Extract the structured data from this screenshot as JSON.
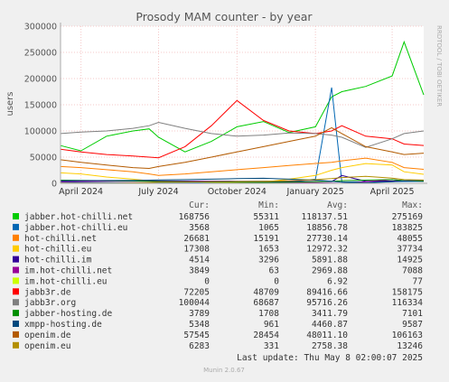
{
  "chart_data": {
    "type": "line",
    "title": "Prosody MAM counter - by year",
    "ylabel": "users",
    "watermark": "RRDTOOL / TOBI OETIKER",
    "ylim": [
      0,
      300000
    ],
    "y_ticks": [
      0,
      50000,
      100000,
      150000,
      200000,
      250000,
      300000
    ],
    "y_tick_labels": [
      "0",
      "50000",
      "100000",
      "150000",
      "200000",
      "250000",
      "300000"
    ],
    "x_ticks": [
      {
        "label": "April 2024",
        "date": "2024-04-01"
      },
      {
        "label": "July 2024",
        "date": "2024-07-01"
      },
      {
        "label": "October 2024",
        "date": "2024-10-01"
      },
      {
        "label": "January 2025",
        "date": "2025-01-01"
      },
      {
        "label": "April 2025",
        "date": "2025-04-01"
      }
    ],
    "x_range": [
      "2024-03-08",
      "2025-05-08"
    ],
    "x": [
      "2024-03-08",
      "2024-04-01",
      "2024-05-01",
      "2024-06-01",
      "2024-06-20",
      "2024-07-01",
      "2024-08-01",
      "2024-09-01",
      "2024-10-01",
      "2024-11-01",
      "2024-12-01",
      "2025-01-01",
      "2025-01-20",
      "2025-02-01",
      "2025-03-01",
      "2025-04-01",
      "2025-04-15",
      "2025-05-08"
    ],
    "series": [
      {
        "name": "jabber.hot-chilli.net",
        "color": "#00cc00",
        "values": [
          72000,
          62000,
          90000,
          100000,
          104000,
          88000,
          60000,
          80000,
          108000,
          118000,
          97000,
          108000,
          165000,
          175000,
          185000,
          205000,
          270000,
          168756
        ]
      },
      {
        "name": "jabber.hot-chilli.eu",
        "color": "#0066b3",
        "values": [
          2000,
          1500,
          1200,
          1100,
          1100,
          1065,
          1300,
          1500,
          1800,
          2000,
          3000,
          8000,
          183000,
          2500,
          3000,
          3200,
          3500,
          3568
        ]
      },
      {
        "name": "hot-chilli.net",
        "color": "#ff8000",
        "values": [
          32000,
          30000,
          26000,
          22000,
          18000,
          15191,
          18000,
          22000,
          26000,
          30000,
          34000,
          38000,
          40000,
          43000,
          48055,
          40000,
          30000,
          26681
        ]
      },
      {
        "name": "hot-chilli.eu",
        "color": "#ffcc00",
        "values": [
          20000,
          18000,
          12000,
          8000,
          5000,
          4000,
          3000,
          2000,
          1653,
          2000,
          8000,
          15000,
          25000,
          30000,
          37734,
          35000,
          22000,
          17308
        ]
      },
      {
        "name": "hot-chilli.im",
        "color": "#330099",
        "values": [
          4000,
          4200,
          4400,
          4500,
          4600,
          4400,
          4300,
          4200,
          4000,
          3800,
          3600,
          3400,
          3296,
          14925,
          4000,
          4300,
          4500,
          4514
        ]
      },
      {
        "name": "im.hot-chilli.net",
        "color": "#990099",
        "values": [
          3000,
          3500,
          3800,
          4000,
          4200,
          4000,
          3500,
          3000,
          2500,
          2000,
          1500,
          1000,
          500,
          63,
          3000,
          7088,
          5000,
          3849
        ]
      },
      {
        "name": "im.hot-chilli.eu",
        "color": "#ccff00",
        "values": [
          0,
          0,
          0,
          0,
          0,
          0,
          0,
          0,
          0,
          0,
          0,
          0,
          0,
          77,
          10,
          0,
          0,
          0
        ]
      },
      {
        "name": "jabb3r.de",
        "color": "#ff0000",
        "values": [
          65000,
          60000,
          55000,
          52000,
          50000,
          48709,
          70000,
          110000,
          158175,
          120000,
          100000,
          95000,
          100000,
          110000,
          90000,
          85000,
          75000,
          72205
        ]
      },
      {
        "name": "jabb3r.org",
        "color": "#808080",
        "values": [
          95000,
          98000,
          100000,
          105000,
          110000,
          116334,
          105000,
          95000,
          90000,
          92000,
          96000,
          95000,
          92000,
          88000,
          68687,
          85000,
          95000,
          100044
        ]
      },
      {
        "name": "jabber-hosting.de",
        "color": "#008f00",
        "values": [
          6000,
          5500,
          5000,
          4500,
          4000,
          3500,
          3000,
          2500,
          2000,
          1708,
          2000,
          3000,
          4000,
          5000,
          6000,
          7101,
          5000,
          3789
        ]
      },
      {
        "name": "xmpp-hosting.de",
        "color": "#00487d",
        "values": [
          5000,
          5200,
          5400,
          5600,
          6000,
          6500,
          7000,
          8000,
          9000,
          9587,
          8000,
          6000,
          4000,
          2000,
          961,
          3000,
          4500,
          5348
        ]
      },
      {
        "name": "openim.de",
        "color": "#b35a00",
        "values": [
          45000,
          40000,
          35000,
          30000,
          28454,
          32000,
          40000,
          50000,
          60000,
          70000,
          80000,
          90000,
          106163,
          95000,
          70000,
          60000,
          55000,
          57545
        ]
      },
      {
        "name": "openim.eu",
        "color": "#b38f00",
        "values": [
          500,
          400,
          331,
          800,
          1500,
          2000,
          2500,
          3000,
          3500,
          4000,
          5000,
          7000,
          9000,
          11000,
          13246,
          10000,
          7000,
          6283
        ]
      }
    ]
  },
  "legend": {
    "headers": {
      "cur": "Cur:",
      "min": "Min:",
      "avg": "Avg:",
      "max": "Max:"
    },
    "rows": [
      {
        "name": "jabber.hot-chilli.net",
        "color": "#00cc00",
        "cur": "168756",
        "min": "55311",
        "avg": "118137.51",
        "max": "275169"
      },
      {
        "name": "jabber.hot-chilli.eu",
        "color": "#0066b3",
        "cur": "3568",
        "min": "1065",
        "avg": "18856.78",
        "max": "183825"
      },
      {
        "name": "hot-chilli.net",
        "color": "#ff8000",
        "cur": "26681",
        "min": "15191",
        "avg": "27730.14",
        "max": "48055"
      },
      {
        "name": "hot-chilli.eu",
        "color": "#ffcc00",
        "cur": "17308",
        "min": "1653",
        "avg": "12972.32",
        "max": "37734"
      },
      {
        "name": "hot-chilli.im",
        "color": "#330099",
        "cur": "4514",
        "min": "3296",
        "avg": "5891.88",
        "max": "14925"
      },
      {
        "name": "im.hot-chilli.net",
        "color": "#990099",
        "cur": "3849",
        "min": "63",
        "avg": "2969.88",
        "max": "7088"
      },
      {
        "name": "im.hot-chilli.eu",
        "color": "#ccff00",
        "cur": "0",
        "min": "0",
        "avg": "6.92",
        "max": "77"
      },
      {
        "name": "jabb3r.de",
        "color": "#ff0000",
        "cur": "72205",
        "min": "48709",
        "avg": "89416.66",
        "max": "158175"
      },
      {
        "name": "jabb3r.org",
        "color": "#808080",
        "cur": "100044",
        "min": "68687",
        "avg": "95716.26",
        "max": "116334"
      },
      {
        "name": "jabber-hosting.de",
        "color": "#008f00",
        "cur": "3789",
        "min": "1708",
        "avg": "3411.79",
        "max": "7101"
      },
      {
        "name": "xmpp-hosting.de",
        "color": "#00487d",
        "cur": "5348",
        "min": "961",
        "avg": "4460.87",
        "max": "9587"
      },
      {
        "name": "openim.de",
        "color": "#b35a00",
        "cur": "57545",
        "min": "28454",
        "avg": "48011.10",
        "max": "106163"
      },
      {
        "name": "openim.eu",
        "color": "#b38f00",
        "cur": "6283",
        "min": "331",
        "avg": "2758.38",
        "max": "13246"
      }
    ]
  },
  "footer": {
    "last_update": "Last update: Thu May  8 02:00:07 2025",
    "munin_version": "Munin 2.0.67"
  }
}
